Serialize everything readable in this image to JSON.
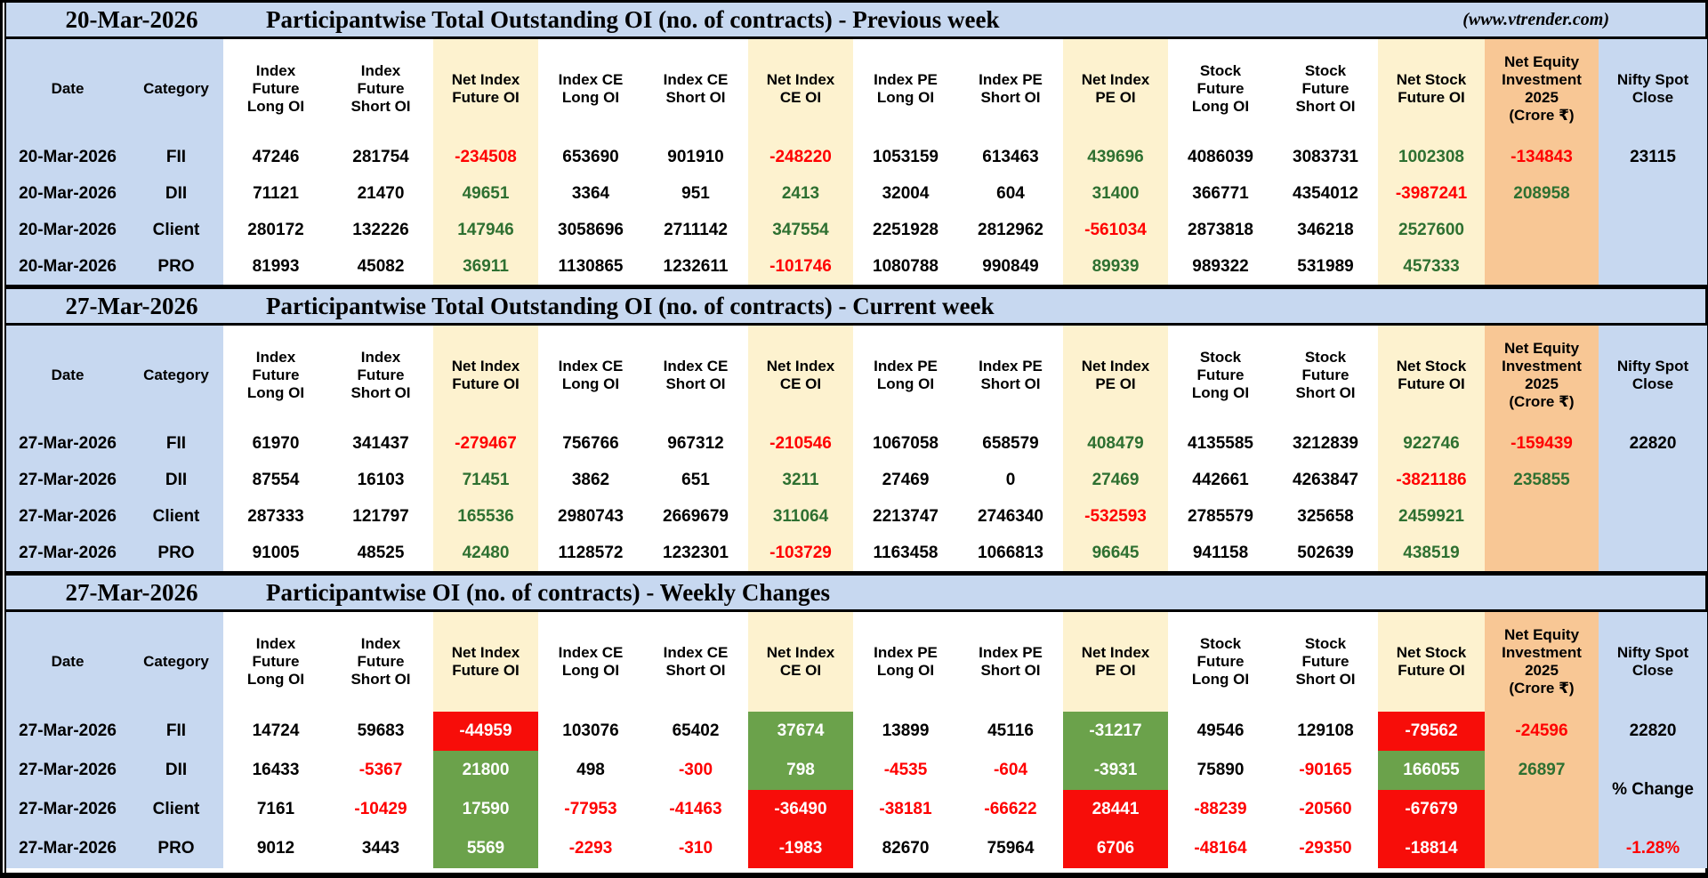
{
  "report": {
    "source_note": "(www.vtrender.com)"
  },
  "colors": {
    "band_blue": "#c7d8f0",
    "net_cream": "#fdf2cf",
    "equity_tan": "#f8c795",
    "positive_text_green": "#2e7031",
    "negative_text_red": "#ff0000",
    "bullish_cell_green": "#6ba24b",
    "bearish_cell_red": "#f70d09"
  },
  "column_headers": [
    "Date",
    "Category",
    "Index\nFuture\nLong OI",
    "Index\nFuture\nShort OI",
    "Net Index\nFuture OI",
    "Index CE\nLong OI",
    "Index CE\nShort OI",
    "Net Index\nCE OI",
    "Index PE\nLong OI",
    "Index PE\nShort OI",
    "Net Index\nPE OI",
    "Stock\nFuture\nLong OI",
    "Stock\nFuture\nShort OI",
    "Net Stock\nFuture OI",
    "Net Equity\nInvestment\n2025\n(Crore ₹)",
    "Nifty Spot\nClose"
  ],
  "sections": [
    {
      "date": "20-Mar-2026",
      "title": "Participantwise Total Outstanding OI (no. of contracts) - Previous week",
      "note": "(www.vtrender.com)",
      "nifty": {
        "value": "23115"
      },
      "rows": [
        {
          "date": "20-Mar-2026",
          "category": "FII",
          "cells": [
            [
              "47246",
              "k"
            ],
            [
              "281754",
              "k"
            ],
            [
              "-234508",
              "r"
            ],
            [
              "653690",
              "k"
            ],
            [
              "901910",
              "k"
            ],
            [
              "-248220",
              "r"
            ],
            [
              "1053159",
              "k"
            ],
            [
              "613463",
              "k"
            ],
            [
              "439696",
              "g"
            ],
            [
              "4086039",
              "k"
            ],
            [
              "3083731",
              "k"
            ],
            [
              "1002308",
              "g"
            ]
          ],
          "equity": [
            "-134843",
            "r"
          ]
        },
        {
          "date": "20-Mar-2026",
          "category": "DII",
          "cells": [
            [
              "71121",
              "k"
            ],
            [
              "21470",
              "k"
            ],
            [
              "49651",
              "g"
            ],
            [
              "3364",
              "k"
            ],
            [
              "951",
              "k"
            ],
            [
              "2413",
              "g"
            ],
            [
              "32004",
              "k"
            ],
            [
              "604",
              "k"
            ],
            [
              "31400",
              "g"
            ],
            [
              "366771",
              "k"
            ],
            [
              "4354012",
              "k"
            ],
            [
              "-3987241",
              "r"
            ]
          ],
          "equity": [
            "208958",
            "g"
          ]
        },
        {
          "date": "20-Mar-2026",
          "category": "Client",
          "cells": [
            [
              "280172",
              "k"
            ],
            [
              "132226",
              "k"
            ],
            [
              "147946",
              "g"
            ],
            [
              "3058696",
              "k"
            ],
            [
              "2711142",
              "k"
            ],
            [
              "347554",
              "g"
            ],
            [
              "2251928",
              "k"
            ],
            [
              "2812962",
              "k"
            ],
            [
              "-561034",
              "r"
            ],
            [
              "2873818",
              "k"
            ],
            [
              "346218",
              "k"
            ],
            [
              "2527600",
              "g"
            ]
          ],
          "equity": [
            "",
            "k"
          ]
        },
        {
          "date": "20-Mar-2026",
          "category": "PRO",
          "cells": [
            [
              "81993",
              "k"
            ],
            [
              "45082",
              "k"
            ],
            [
              "36911",
              "g"
            ],
            [
              "1130865",
              "k"
            ],
            [
              "1232611",
              "k"
            ],
            [
              "-101746",
              "r"
            ],
            [
              "1080788",
              "k"
            ],
            [
              "990849",
              "k"
            ],
            [
              "89939",
              "g"
            ],
            [
              "989322",
              "k"
            ],
            [
              "531989",
              "k"
            ],
            [
              "457333",
              "g"
            ]
          ],
          "equity": [
            "",
            "k"
          ]
        }
      ]
    },
    {
      "date": "27-Mar-2026",
      "title": "Participantwise Total Outstanding OI (no. of contracts) - Current week",
      "nifty": {
        "value": "22820"
      },
      "rows": [
        {
          "date": "27-Mar-2026",
          "category": "FII",
          "cells": [
            [
              "61970",
              "k"
            ],
            [
              "341437",
              "k"
            ],
            [
              "-279467",
              "r"
            ],
            [
              "756766",
              "k"
            ],
            [
              "967312",
              "k"
            ],
            [
              "-210546",
              "r"
            ],
            [
              "1067058",
              "k"
            ],
            [
              "658579",
              "k"
            ],
            [
              "408479",
              "g"
            ],
            [
              "4135585",
              "k"
            ],
            [
              "3212839",
              "k"
            ],
            [
              "922746",
              "g"
            ]
          ],
          "equity": [
            "-159439",
            "r"
          ]
        },
        {
          "date": "27-Mar-2026",
          "category": "DII",
          "cells": [
            [
              "87554",
              "k"
            ],
            [
              "16103",
              "k"
            ],
            [
              "71451",
              "g"
            ],
            [
              "3862",
              "k"
            ],
            [
              "651",
              "k"
            ],
            [
              "3211",
              "g"
            ],
            [
              "27469",
              "k"
            ],
            [
              "0",
              "k"
            ],
            [
              "27469",
              "g"
            ],
            [
              "442661",
              "k"
            ],
            [
              "4263847",
              "k"
            ],
            [
              "-3821186",
              "r"
            ]
          ],
          "equity": [
            "235855",
            "g"
          ]
        },
        {
          "date": "27-Mar-2026",
          "category": "Client",
          "cells": [
            [
              "287333",
              "k"
            ],
            [
              "121797",
              "k"
            ],
            [
              "165536",
              "g"
            ],
            [
              "2980743",
              "k"
            ],
            [
              "2669679",
              "k"
            ],
            [
              "311064",
              "g"
            ],
            [
              "2213747",
              "k"
            ],
            [
              "2746340",
              "k"
            ],
            [
              "-532593",
              "r"
            ],
            [
              "2785579",
              "k"
            ],
            [
              "325658",
              "k"
            ],
            [
              "2459921",
              "g"
            ]
          ],
          "equity": [
            "",
            "k"
          ]
        },
        {
          "date": "27-Mar-2026",
          "category": "PRO",
          "cells": [
            [
              "91005",
              "k"
            ],
            [
              "48525",
              "k"
            ],
            [
              "42480",
              "g"
            ],
            [
              "1128572",
              "k"
            ],
            [
              "1232301",
              "k"
            ],
            [
              "-103729",
              "r"
            ],
            [
              "1163458",
              "k"
            ],
            [
              "1066813",
              "k"
            ],
            [
              "96645",
              "g"
            ],
            [
              "941158",
              "k"
            ],
            [
              "502639",
              "k"
            ],
            [
              "438519",
              "g"
            ]
          ],
          "equity": [
            "",
            "k"
          ]
        }
      ]
    },
    {
      "date": "27-Mar-2026",
      "title": "Participantwise OI (no. of contracts) - Weekly Changes",
      "weekly": true,
      "nifty": {
        "value": "22820",
        "pct_label": "% Change",
        "pct_value": "-1.28%"
      },
      "rows": [
        {
          "date": "27-Mar-2026",
          "category": "FII",
          "cells": [
            [
              "14724",
              "k"
            ],
            [
              "59683",
              "k"
            ],
            [
              "-44959",
              "R"
            ],
            [
              "103076",
              "k"
            ],
            [
              "65402",
              "k"
            ],
            [
              "37674",
              "G"
            ],
            [
              "13899",
              "k"
            ],
            [
              "45116",
              "k"
            ],
            [
              "-31217",
              "G"
            ],
            [
              "49546",
              "k"
            ],
            [
              "129108",
              "k"
            ],
            [
              "-79562",
              "R"
            ]
          ],
          "equity": [
            "-24596",
            "r"
          ]
        },
        {
          "date": "27-Mar-2026",
          "category": "DII",
          "cells": [
            [
              "16433",
              "k"
            ],
            [
              "-5367",
              "r"
            ],
            [
              "21800",
              "G"
            ],
            [
              "498",
              "k"
            ],
            [
              "-300",
              "r"
            ],
            [
              "798",
              "G"
            ],
            [
              "-4535",
              "r"
            ],
            [
              "-604",
              "r"
            ],
            [
              "-3931",
              "G"
            ],
            [
              "75890",
              "k"
            ],
            [
              "-90165",
              "r"
            ],
            [
              "166055",
              "G"
            ]
          ],
          "equity": [
            "26897",
            "g"
          ]
        },
        {
          "date": "27-Mar-2026",
          "category": "Client",
          "cells": [
            [
              "7161",
              "k"
            ],
            [
              "-10429",
              "r"
            ],
            [
              "17590",
              "G"
            ],
            [
              "-77953",
              "r"
            ],
            [
              "-41463",
              "r"
            ],
            [
              "-36490",
              "R"
            ],
            [
              "-38181",
              "r"
            ],
            [
              "-66622",
              "r"
            ],
            [
              "28441",
              "R"
            ],
            [
              "-88239",
              "r"
            ],
            [
              "-20560",
              "r"
            ],
            [
              "-67679",
              "R"
            ]
          ],
          "equity": [
            "",
            "k"
          ]
        },
        {
          "date": "27-Mar-2026",
          "category": "PRO",
          "cells": [
            [
              "9012",
              "k"
            ],
            [
              "3443",
              "k"
            ],
            [
              "5569",
              "G"
            ],
            [
              "-2293",
              "r"
            ],
            [
              "-310",
              "r"
            ],
            [
              "-1983",
              "R"
            ],
            [
              "82670",
              "k"
            ],
            [
              "75964",
              "k"
            ],
            [
              "6706",
              "R"
            ],
            [
              "-48164",
              "r"
            ],
            [
              "-29350",
              "r"
            ],
            [
              "-18814",
              "R"
            ]
          ],
          "equity": [
            "",
            "k"
          ]
        }
      ]
    }
  ]
}
